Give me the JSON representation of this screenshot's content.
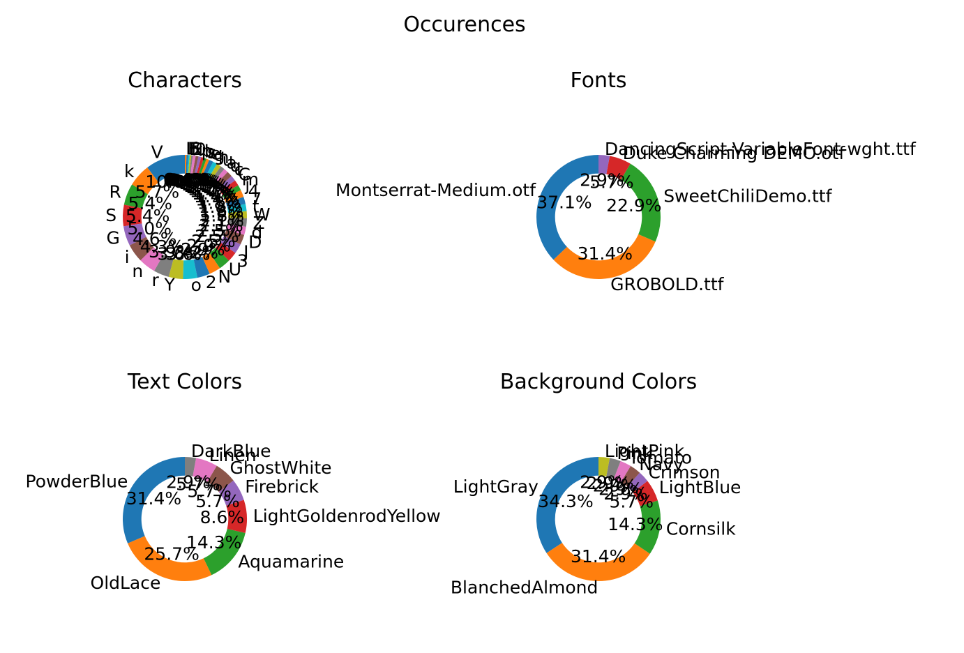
{
  "figure": {
    "title": "Occurences"
  },
  "chart_data": [
    {
      "type": "pie",
      "donut": true,
      "title": "Characters",
      "labels": [
        "V",
        "k",
        "R",
        "S",
        "G",
        "i",
        "n",
        "r",
        "Y",
        "o",
        "2",
        "N",
        "U",
        "3",
        "J",
        "D",
        "d",
        "Z",
        "W",
        "t",
        "7",
        "4",
        "j",
        "m",
        "C",
        "c",
        "q",
        "a",
        "u",
        "h",
        "g",
        "e",
        "s",
        "b",
        "p",
        "l",
        "0",
        "x",
        "f",
        "E",
        "F",
        "L"
      ],
      "percents": [
        10.0,
        5.7,
        5.4,
        5.4,
        5.0,
        4.6,
        4.3,
        3.9,
        3.6,
        3.6,
        3.2,
        2.9,
        2.9,
        2.5,
        2.5,
        2.5,
        2.1,
        2.1,
        1.8,
        1.8,
        1.8,
        1.8,
        1.4,
        1.4,
        1.4,
        1.4,
        1.1,
        1.1,
        1.1,
        1.1,
        1.1,
        0.7,
        0.7,
        0.7,
        0.7,
        0.7,
        0.7,
        0.4,
        0.4,
        0.4,
        0.4,
        0.4
      ],
      "pct_labels": [
        "10.0%",
        "5.7%",
        "5.4%",
        "5.4%",
        "5.0%",
        "4.6%",
        "4.3%",
        "3.9%",
        "3.6%",
        "3.6%",
        "3.2%",
        "2.9%",
        "2.9%",
        "2.5%",
        "2.5%",
        "2.5%",
        "2.1%",
        "2.1%",
        "1.8%",
        "1.8%",
        "1.8%",
        "1.8%",
        "1.4%",
        "1.4%",
        "1.4%",
        "1.4%",
        "1.1%",
        "1.1%",
        "1.1%",
        "1.1%",
        "1.1%",
        "0.7%",
        "0.7%",
        "0.7%",
        "0.7%",
        "0.7%",
        "0.7%",
        "0.4%",
        "0.4%",
        "0.4%",
        "0.4%",
        "0.4%"
      ]
    },
    {
      "type": "pie",
      "donut": true,
      "title": "Fonts",
      "labels": [
        "Montserrat-Medium.otf",
        "GROBOLD.ttf",
        "SweetChiliDemo.ttf",
        "Duke Charming DEMO.otf",
        "DancingScript-VariableFont-wght.ttf"
      ],
      "percents": [
        37.1,
        31.4,
        22.9,
        5.7,
        2.9
      ],
      "pct_labels": [
        "37.1%",
        "31.4%",
        "22.9%",
        "5.7%",
        "2.9%"
      ]
    },
    {
      "type": "pie",
      "donut": true,
      "title": "Text Colors",
      "labels": [
        "PowderBlue",
        "OldLace",
        "Aquamarine",
        "LightGoldenrodYellow",
        "Firebrick",
        "GhostWhite",
        "Linen",
        "DarkBlue"
      ],
      "percents": [
        31.4,
        25.7,
        14.3,
        8.6,
        5.7,
        5.7,
        5.7,
        2.9
      ],
      "pct_labels": [
        "31.4%",
        "25.7%",
        "14.3%",
        "8.6%",
        "5.7%",
        "5.7%",
        "5.7%",
        "2.9%"
      ]
    },
    {
      "type": "pie",
      "donut": true,
      "title": "Background Colors",
      "labels": [
        "LightGray",
        "BlanchedAlmond",
        "Cornsilk",
        "LightBlue",
        "Crimson",
        "Navy",
        "Tomato",
        "Pink",
        "LightPink"
      ],
      "percents": [
        34.3,
        31.4,
        14.3,
        5.7,
        2.9,
        2.9,
        2.9,
        2.9,
        2.9
      ],
      "pct_labels": [
        "34.3%",
        "31.4%",
        "14.3%",
        "5.7%",
        "2.9%",
        "2.9%",
        "2.9%",
        "2.9%",
        "2.9%"
      ]
    }
  ],
  "palette": [
    "#1f77b4",
    "#ff7f0e",
    "#2ca02c",
    "#d62728",
    "#9467bd",
    "#8c564b",
    "#e377c2",
    "#7f7f7f",
    "#bcbd22",
    "#17becf"
  ]
}
